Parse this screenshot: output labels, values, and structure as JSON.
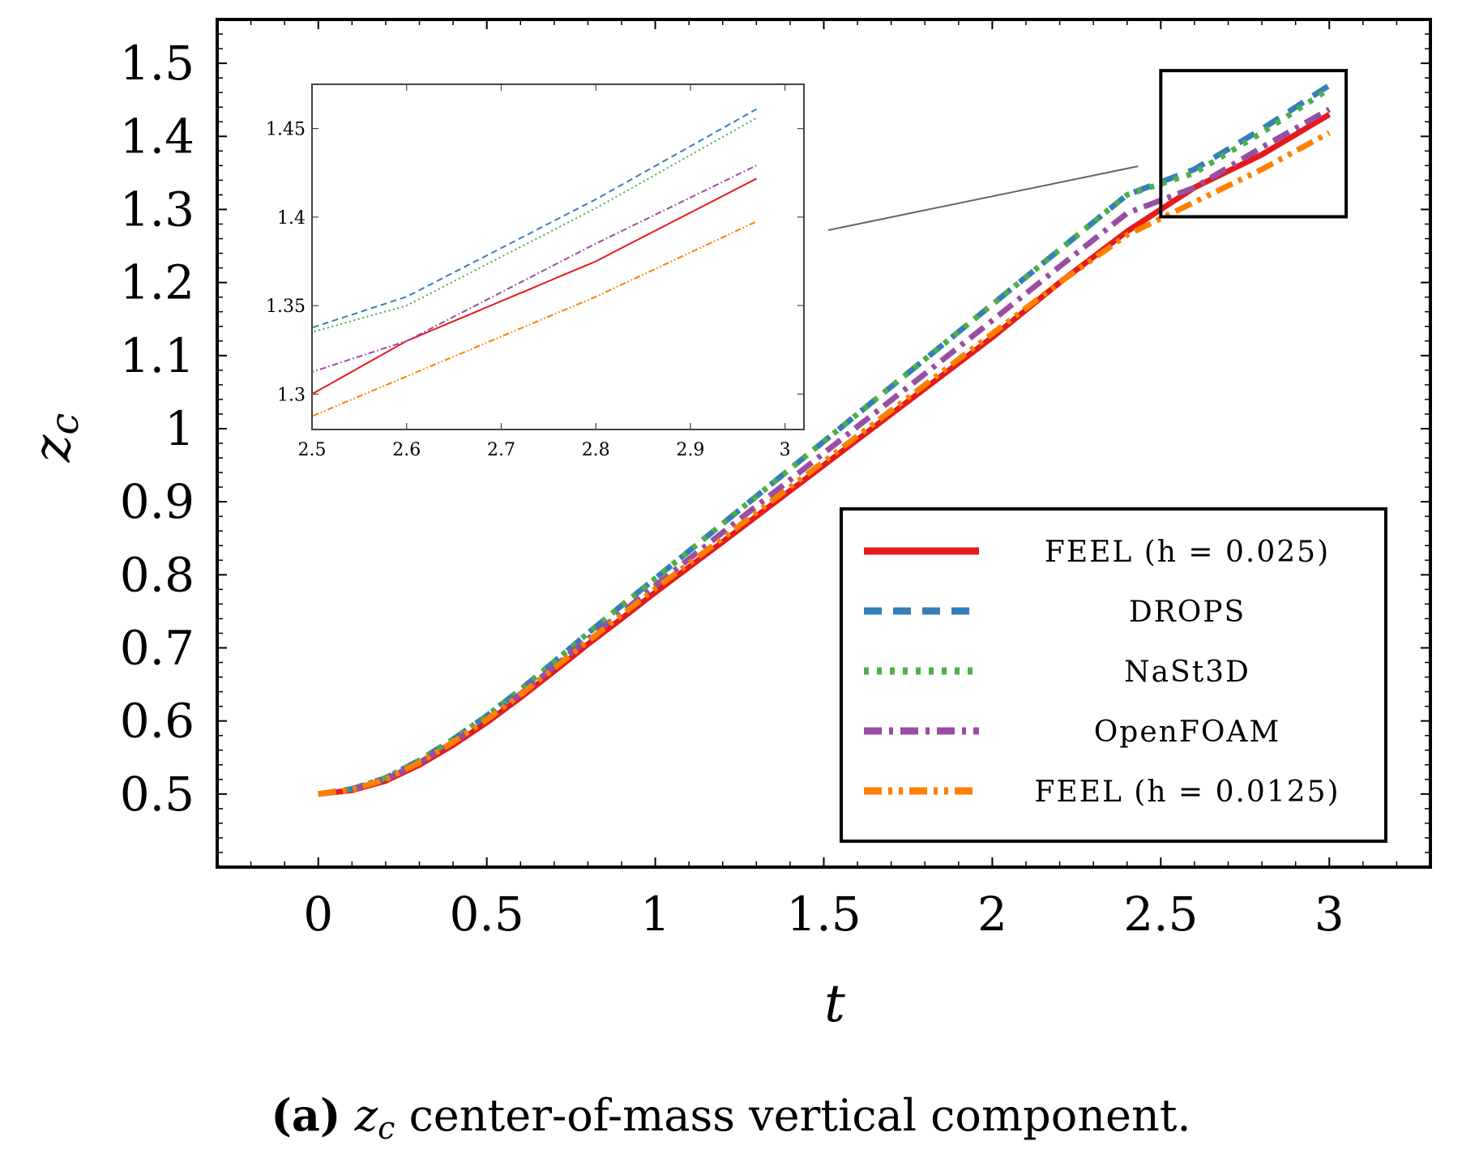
{
  "chart_data": {
    "main": {
      "type": "line",
      "xlabel": "t",
      "ylabel": "z_c",
      "ylabel_base": "z",
      "ylabel_sub": "c",
      "xlim": [
        -0.3,
        3.3
      ],
      "ylim": [
        0.4,
        1.56
      ],
      "xticks": [
        0,
        0.5,
        1,
        1.5,
        2,
        2.5,
        3
      ],
      "xtick_labels": [
        "0",
        "0.5",
        "1",
        "1.5",
        "2",
        "2.5",
        "3"
      ],
      "yticks": [
        0.5,
        0.6,
        0.7,
        0.8,
        0.9,
        1.0,
        1.1,
        1.2,
        1.3,
        1.4,
        1.5
      ],
      "ytick_labels": [
        "0.5",
        "0.6",
        "0.7",
        "0.8",
        "0.9",
        "1",
        "1.1",
        "1.2",
        "1.3",
        "1.4",
        "1.5"
      ],
      "series": [
        {
          "name": "FEEL (h = 0.025)",
          "color": "#e41a1c",
          "style": "solid",
          "x": [
            0,
            0.1,
            0.2,
            0.3,
            0.4,
            0.5,
            0.6,
            0.7,
            0.8,
            0.9,
            1.0,
            1.2,
            1.4,
            1.6,
            1.8,
            2.0,
            2.2,
            2.4,
            2.6,
            2.8,
            3.0
          ],
          "y": [
            0.5,
            0.505,
            0.518,
            0.54,
            0.567,
            0.598,
            0.632,
            0.668,
            0.705,
            0.74,
            0.776,
            0.845,
            0.915,
            0.985,
            1.055,
            1.125,
            1.2,
            1.27,
            1.33,
            1.375,
            1.43
          ]
        },
        {
          "name": "DROPS",
          "color": "#377eb8",
          "style": "dashed",
          "x": [
            0,
            0.1,
            0.2,
            0.3,
            0.4,
            0.5,
            0.6,
            0.7,
            0.8,
            0.9,
            1.0,
            1.2,
            1.4,
            1.6,
            1.8,
            2.0,
            2.2,
            2.4,
            2.6,
            2.8,
            3.0
          ],
          "y": [
            0.5,
            0.507,
            0.522,
            0.546,
            0.575,
            0.607,
            0.643,
            0.681,
            0.72,
            0.758,
            0.795,
            0.87,
            0.945,
            1.02,
            1.095,
            1.17,
            1.245,
            1.32,
            1.355,
            1.41,
            1.47
          ]
        },
        {
          "name": "NaSt3D",
          "color": "#4daf4a",
          "style": "dotted",
          "x": [
            0,
            0.1,
            0.2,
            0.3,
            0.4,
            0.5,
            0.6,
            0.7,
            0.8,
            0.9,
            1.0,
            1.2,
            1.4,
            1.6,
            1.8,
            2.0,
            2.2,
            2.4,
            2.6,
            2.8,
            3.0
          ],
          "y": [
            0.5,
            0.507,
            0.522,
            0.546,
            0.575,
            0.607,
            0.643,
            0.681,
            0.72,
            0.758,
            0.795,
            0.87,
            0.945,
            1.02,
            1.095,
            1.17,
            1.245,
            1.32,
            1.35,
            1.405,
            1.465
          ]
        },
        {
          "name": "OpenFOAM",
          "color": "#984ea3",
          "style": "dashdot",
          "x": [
            0,
            0.1,
            0.2,
            0.3,
            0.4,
            0.5,
            0.6,
            0.7,
            0.8,
            0.9,
            1.0,
            1.2,
            1.4,
            1.6,
            1.8,
            2.0,
            2.2,
            2.4,
            2.6,
            2.8,
            3.0
          ],
          "y": [
            0.5,
            0.506,
            0.52,
            0.543,
            0.571,
            0.602,
            0.637,
            0.674,
            0.712,
            0.748,
            0.785,
            0.858,
            0.93,
            1.003,
            1.075,
            1.148,
            1.222,
            1.295,
            1.33,
            1.385,
            1.437
          ]
        },
        {
          "name": "FEEL (h = 0.0125)",
          "color": "#ff7f00",
          "style": "dashdotdot",
          "x": [
            0,
            0.1,
            0.2,
            0.3,
            0.4,
            0.5,
            0.6,
            0.7,
            0.8,
            0.9,
            1.0,
            1.2,
            1.4,
            1.6,
            1.8,
            2.0,
            2.2,
            2.4,
            2.6,
            2.8,
            3.0
          ],
          "y": [
            0.5,
            0.506,
            0.52,
            0.543,
            0.571,
            0.602,
            0.636,
            0.672,
            0.709,
            0.745,
            0.781,
            0.85,
            0.92,
            0.99,
            1.06,
            1.13,
            1.2,
            1.265,
            1.31,
            1.355,
            1.405
          ]
        }
      ],
      "zoom_box": {
        "x": [
          2.5,
          3.05
        ],
        "y": [
          1.29,
          1.49
        ]
      }
    },
    "inset": {
      "type": "line",
      "xlim": [
        2.5,
        3.02
      ],
      "ylim": [
        1.28,
        1.475
      ],
      "xticks": [
        2.5,
        2.6,
        2.7,
        2.8,
        2.9,
        3.0
      ],
      "xtick_labels": [
        "2.5",
        "2.6",
        "2.7",
        "2.8",
        "2.9",
        "3"
      ],
      "yticks": [
        1.3,
        1.35,
        1.4,
        1.45
      ],
      "ytick_labels": [
        "1.3",
        "1.35",
        "1.4",
        "1.45"
      ]
    },
    "legend": {
      "placement": "lower-right",
      "entries": [
        "FEEL (h = 0.025)",
        "DROPS",
        "NaSt3D",
        "OpenFOAM",
        "FEEL (h = 0.0125)"
      ]
    }
  },
  "caption": {
    "label": "(a)",
    "symbol": "z",
    "symbol_sub": "c",
    "text": "center-of-mass vertical component."
  }
}
